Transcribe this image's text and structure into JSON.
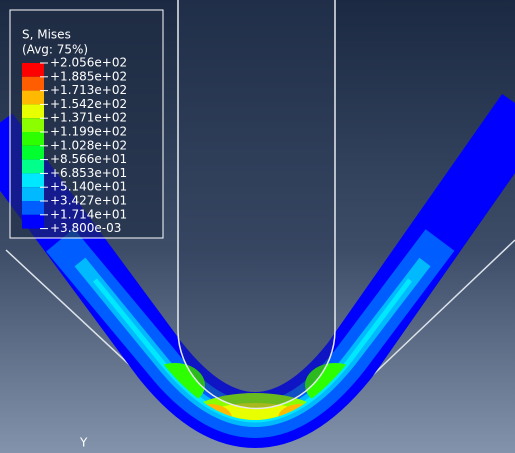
{
  "legend": {
    "title": "S, Mises",
    "subtitle": "(Avg: 75%)",
    "labels": [
      "+2.056e+02",
      "+1.885e+02",
      "+1.713e+02",
      "+1.542e+02",
      "+1.371e+02",
      "+1.199e+02",
      "+1.028e+02",
      "+8.566e+01",
      "+6.853e+01",
      "+5.140e+01",
      "+3.427e+01",
      "+1.714e+01",
      "+3.800e-03"
    ],
    "colors": [
      "#ff0000",
      "#ff5d00",
      "#ffb900",
      "#e8ff00",
      "#8bff00",
      "#2eff00",
      "#00ff2e",
      "#00ff8b",
      "#00e8ff",
      "#00b9ff",
      "#005dff",
      "#0000ff"
    ]
  },
  "triad": {
    "axis": "Y"
  }
}
